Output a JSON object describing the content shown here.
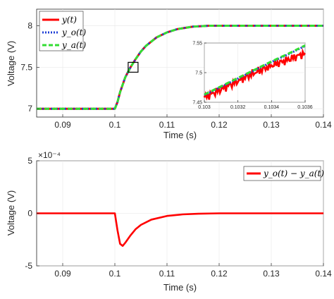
{
  "chart_data": [
    {
      "type": "line",
      "xlabel": "Time (s)",
      "ylabel": "Voltage (V)",
      "xlim": [
        0.085,
        0.14
      ],
      "ylim": [
        6.9,
        8.2
      ],
      "xticks": [
        "0.09",
        "0.1",
        "0.11",
        "0.12",
        "0.13",
        "0.14"
      ],
      "yticks": [
        "7",
        "7.5",
        "8"
      ],
      "grid": true,
      "legend_position": "top-left",
      "series": [
        {
          "name": "y(t)",
          "color": "#ff0000",
          "style": "solid",
          "x": [
            0.085,
            0.1,
            0.1005,
            0.101,
            0.102,
            0.103,
            0.104,
            0.105,
            0.106,
            0.108,
            0.11,
            0.112,
            0.115,
            0.118,
            0.12,
            0.125,
            0.13,
            0.14
          ],
          "y": [
            7.0,
            7.0,
            7.08,
            7.2,
            7.38,
            7.5,
            7.6,
            7.69,
            7.76,
            7.86,
            7.92,
            7.96,
            7.99,
            8.0,
            8.0,
            8.0,
            8.0,
            8.0
          ]
        },
        {
          "name": "y_o(t)",
          "color": "#1f3fd6",
          "style": "dotted",
          "x": [
            0.085,
            0.1,
            0.1005,
            0.101,
            0.102,
            0.103,
            0.104,
            0.105,
            0.106,
            0.108,
            0.11,
            0.112,
            0.115,
            0.118,
            0.12,
            0.125,
            0.13,
            0.14
          ],
          "y": [
            7.0,
            7.0,
            7.08,
            7.2,
            7.38,
            7.5,
            7.6,
            7.69,
            7.76,
            7.86,
            7.92,
            7.96,
            7.99,
            8.0,
            8.0,
            8.0,
            8.0,
            8.0
          ]
        },
        {
          "name": "y_a(t)",
          "color": "#33dd33",
          "style": "dashed",
          "x": [
            0.085,
            0.1,
            0.1005,
            0.101,
            0.102,
            0.103,
            0.104,
            0.105,
            0.106,
            0.108,
            0.11,
            0.112,
            0.115,
            0.118,
            0.12,
            0.125,
            0.13,
            0.14
          ],
          "y": [
            7.0,
            7.0,
            7.08,
            7.2,
            7.38,
            7.5,
            7.6,
            7.69,
            7.76,
            7.86,
            7.92,
            7.96,
            7.99,
            8.0,
            8.0,
            8.0,
            8.0,
            8.0
          ]
        }
      ],
      "inset": {
        "xlim": [
          0.103,
          0.1036
        ],
        "ylim": [
          7.45,
          7.55
        ],
        "xticks": [
          "0.103",
          "0.1032",
          "0.1034",
          "0.1036"
        ],
        "yticks": [
          "7.45",
          "7.5",
          "7.55"
        ],
        "zoom_box_center": [
          0.1035,
          7.5
        ],
        "series": [
          {
            "name": "y(t)",
            "x": [
              0.103,
              0.1031,
              0.1032,
              0.1033,
              0.1034,
              0.1035,
              0.1036
            ],
            "y": [
              7.458,
              7.472,
              7.486,
              7.5,
              7.512,
              7.522,
              7.533
            ]
          },
          {
            "name": "y_o(t)",
            "x": [
              0.103,
              0.1031,
              0.1032,
              0.1033,
              0.1034,
              0.1035,
              0.1036
            ],
            "y": [
              7.462,
              7.476,
              7.49,
              7.504,
              7.518,
              7.531,
              7.545
            ]
          },
          {
            "name": "y_a(t)",
            "x": [
              0.103,
              0.1031,
              0.1032,
              0.1033,
              0.1034,
              0.1035,
              0.1036
            ],
            "y": [
              7.463,
              7.477,
              7.491,
              7.505,
              7.519,
              7.532,
              7.546
            ]
          }
        ]
      }
    },
    {
      "type": "line",
      "xlabel": "Time (s)",
      "ylabel": "Voltage (V)",
      "xlim": [
        0.085,
        0.14
      ],
      "ylim": [
        -5,
        5
      ],
      "y_exponent": "×10⁻⁴",
      "xticks": [
        "0.09",
        "0.1",
        "0.11",
        "0.12",
        "0.13",
        "0.14"
      ],
      "yticks": [
        "5",
        "0",
        "-5"
      ],
      "grid": true,
      "legend_position": "top-right",
      "series": [
        {
          "name": "y_o(t) − y_a(t)",
          "color": "#ff0000",
          "style": "solid",
          "x": [
            0.085,
            0.1,
            0.1005,
            0.101,
            0.1015,
            0.102,
            0.103,
            0.104,
            0.105,
            0.107,
            0.11,
            0.113,
            0.116,
            0.12,
            0.13,
            0.14
          ],
          "y": [
            0,
            0,
            -1.6,
            -2.9,
            -3.1,
            -2.8,
            -2.1,
            -1.5,
            -1.1,
            -0.6,
            -0.25,
            -0.1,
            -0.04,
            0,
            0,
            0
          ]
        }
      ]
    }
  ]
}
